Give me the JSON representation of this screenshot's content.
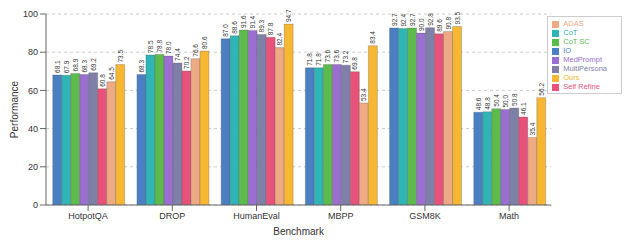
{
  "chart_data": {
    "type": "bar",
    "x_label": "Benchmark",
    "y_label": "Performance",
    "categories": [
      "HotpotQA",
      "DROP",
      "HumanEval",
      "MBPP",
      "GSM8K",
      "Math"
    ],
    "ylim": [
      0,
      100
    ],
    "yticks": [
      0,
      20,
      40,
      60,
      80,
      100
    ],
    "grid": true,
    "legend": "upper right",
    "data_labels": true,
    "series": [
      {
        "name": "IO",
        "color": "#4a7fc1",
        "values": [
          68.1,
          68.3,
          87.0,
          71.8,
          92.7,
          48.6
        ],
        "value_labels": [
          "68.1",
          "68.3",
          "87.0",
          "71.8",
          "92.7",
          "48.6"
        ]
      },
      {
        "name": "CoT",
        "color": "#2fb5b5",
        "values": [
          67.9,
          78.5,
          88.6,
          71.8,
          92.4,
          48.8
        ],
        "value_labels": [
          "67.9",
          "78.5",
          "88.6",
          "71.8",
          "92.4",
          "48.8"
        ]
      },
      {
        "name": "CoT SC",
        "color": "#5dbb4e",
        "values": [
          68.9,
          78.8,
          91.6,
          73.6,
          92.7,
          50.4
        ],
        "value_labels": [
          "68.9",
          "78.8",
          "91.6",
          "73.6",
          "92.7",
          "50.4"
        ]
      },
      {
        "name": "MedPrompt",
        "color": "#9a6fcf",
        "values": [
          68.3,
          78.0,
          91.4,
          73.6,
          90.0,
          50.0
        ],
        "value_labels": [
          "68.3",
          "78.0",
          "91.4",
          "73.6",
          "90.0",
          "50.0"
        ]
      },
      {
        "name": "MultiPersona",
        "color": "#7f80a8",
        "values": [
          69.2,
          74.4,
          89.3,
          73.2,
          92.8,
          50.8
        ],
        "value_labels": [
          "69.2",
          "74.4",
          "89.3",
          "73.2",
          "92.8",
          "50.8"
        ]
      },
      {
        "name": "Self Refine",
        "color": "#e8527a",
        "values": [
          60.8,
          70.2,
          87.8,
          69.8,
          89.6,
          46.1
        ],
        "value_labels": [
          "60.8",
          "70.2",
          "87.8",
          "69.8",
          "89.6",
          "46.1"
        ]
      },
      {
        "name": "ADAS",
        "color": "#eeaa82",
        "values": [
          64.5,
          76.6,
          82.4,
          53.4,
          90.8,
          35.4
        ],
        "value_labels": [
          "64.5",
          "76.6",
          "82.4",
          "53.4",
          "90.8",
          "35.4"
        ]
      },
      {
        "name": "Ours",
        "color": "#f7b733",
        "values": [
          73.5,
          80.6,
          94.7,
          83.4,
          93.5,
          56.2
        ],
        "value_labels": [
          "73.5",
          "80.6",
          "94.7",
          "83.4",
          "93.5",
          "56.2"
        ]
      }
    ]
  }
}
